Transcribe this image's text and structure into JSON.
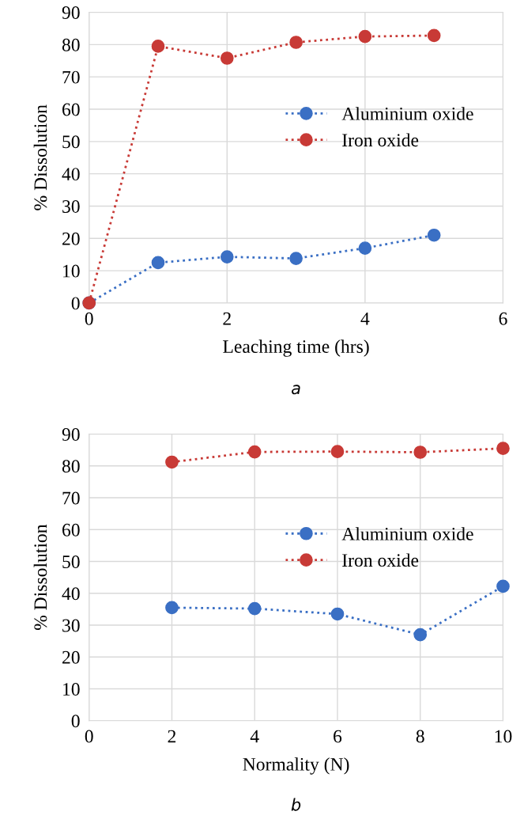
{
  "chart_data": [
    {
      "type": "line",
      "xlabel": "Leaching time (hrs)",
      "ylabel": "% Dissolution",
      "annotations": [
        "a"
      ],
      "x": [
        0,
        1,
        2,
        3,
        4,
        5
      ],
      "series": [
        {
          "name": "Aluminium oxide",
          "color": "#3a6fc4",
          "values": [
            0,
            12.5,
            14.3,
            13.8,
            17,
            21
          ]
        },
        {
          "name": "Iron oxide",
          "color": "#c83a36",
          "values": [
            0,
            79.5,
            75.8,
            80.7,
            82.5,
            82.8
          ]
        }
      ],
      "xlim": [
        0,
        6
      ],
      "xticks": [
        0,
        2,
        4,
        6
      ],
      "ylim": [
        0,
        90
      ],
      "yticks": [
        0,
        10,
        20,
        30,
        40,
        50,
        60,
        70,
        80,
        90
      ],
      "grid": true,
      "legend": "center right",
      "marker": "circle",
      "line_style": "dotted"
    },
    {
      "type": "line",
      "xlabel": "Normality (N)",
      "ylabel": "% Dissolution",
      "annotations": [
        "b"
      ],
      "x": [
        2,
        4,
        6,
        8,
        10
      ],
      "series": [
        {
          "name": "Aluminium oxide",
          "color": "#3a6fc4",
          "values": [
            35.5,
            35.2,
            33.5,
            27,
            42.2
          ]
        },
        {
          "name": "Iron oxide",
          "color": "#c83a36",
          "values": [
            81.2,
            84.4,
            84.5,
            84.3,
            85.5
          ]
        }
      ],
      "xlim": [
        0,
        10
      ],
      "xticks": [
        0,
        2,
        4,
        6,
        8,
        10
      ],
      "ylim": [
        0,
        90
      ],
      "yticks": [
        0,
        10,
        20,
        30,
        40,
        50,
        60,
        70,
        80,
        90
      ],
      "grid": true,
      "legend": "center right",
      "marker": "circle",
      "line_style": "dotted"
    }
  ]
}
